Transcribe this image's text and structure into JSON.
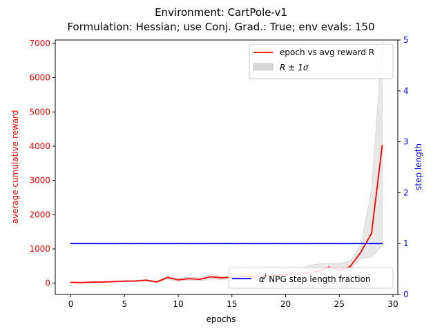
{
  "chart_data": {
    "type": "line",
    "title": "Environment: CartPole-v1",
    "subtitle": "Formulation: Hessian; use Conj. Grad.: True; env evals: 150",
    "xlabel": "epochs",
    "ylabel_left": "average cumulative reward",
    "ylabel_right": "step length",
    "xlim": [
      -1.45,
      30.45
    ],
    "ylim_left": [
      -330,
      7100
    ],
    "ylim_right": [
      0,
      5
    ],
    "x_ticks": [
      0,
      5,
      10,
      15,
      20,
      25,
      30
    ],
    "y_left_ticks": [
      0,
      1000,
      2000,
      3000,
      4000,
      5000,
      6000,
      7000
    ],
    "y_right_ticks": [
      0,
      1,
      2,
      3,
      4,
      5
    ],
    "grid": false,
    "x": [
      0,
      1,
      2,
      3,
      4,
      5,
      6,
      7,
      8,
      9,
      10,
      11,
      12,
      13,
      14,
      15,
      16,
      17,
      18,
      19,
      20,
      21,
      22,
      23,
      24,
      25,
      26,
      27,
      28,
      29
    ],
    "series": [
      {
        "name": "epoch vs avg reward R",
        "axis": "left",
        "color": "#ff0000",
        "values": [
          22,
          18,
          30,
          33,
          45,
          58,
          62,
          85,
          35,
          165,
          95,
          130,
          110,
          185,
          155,
          170,
          195,
          180,
          210,
          225,
          260,
          240,
          300,
          340,
          470,
          390,
          480,
          900,
          1450,
          4020
        ]
      },
      {
        "name": "$R\\pm$ 1$\\sigma$",
        "axis": "left",
        "type": "band",
        "color": "#d8d8d8",
        "lower": [
          10,
          8,
          15,
          18,
          30,
          40,
          45,
          60,
          20,
          120,
          50,
          90,
          70,
          120,
          110,
          120,
          140,
          130,
          150,
          160,
          190,
          180,
          230,
          270,
          380,
          320,
          400,
          720,
          760,
          1100
        ],
        "upper": [
          35,
          30,
          45,
          48,
          65,
          80,
          85,
          110,
          55,
          200,
          140,
          170,
          150,
          250,
          200,
          220,
          250,
          230,
          270,
          300,
          420,
          310,
          500,
          560,
          580,
          580,
          640,
          1100,
          2700,
          7050
        ]
      },
      {
        "name": "$\\alpha^j$ NPG step length fraction",
        "axis": "right",
        "color": "#0000ff",
        "values": [
          1.0,
          1.0,
          1.0,
          1.0,
          1.0,
          1.0,
          1.0,
          1.0,
          1.0,
          1.0,
          1.0,
          1.0,
          1.0,
          1.0,
          1.0,
          1.0,
          1.0,
          1.0,
          1.0,
          1.0,
          1.0,
          1.0,
          1.0,
          1.0,
          1.0,
          1.0,
          1.0,
          1.0,
          1.0,
          1.0
        ]
      }
    ],
    "legend_upper": {
      "placement": "upper-right",
      "entries": [
        {
          "label_text": "epoch vs avg reward R",
          "series": 0
        },
        {
          "label_main": "R",
          "label_pm": "±",
          "label_sigma": " 1σ",
          "series": 1
        }
      ]
    },
    "legend_lower": {
      "placement": "lower-right",
      "entries": [
        {
          "alpha": "α",
          "sup": "j",
          "rest": " NPG step length fraction",
          "series": 2
        }
      ]
    },
    "colors": {
      "left_axis": "#ff0000",
      "right_axis": "#0000ff",
      "band": "#d8d8d8",
      "frame": "#000000"
    }
  }
}
